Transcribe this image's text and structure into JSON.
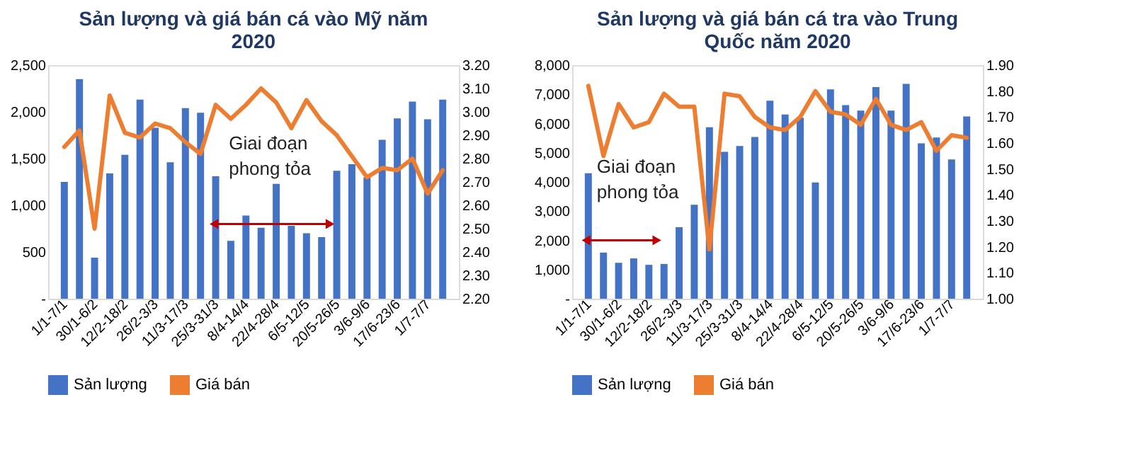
{
  "chart_data": [
    {
      "type": "bar",
      "title": "Sản lượng và giá bán cá vào Mỹ năm 2020",
      "categories": [
        "1/1-7/1",
        null,
        "30/1-6/2",
        null,
        "12/2-18/2",
        null,
        "26/2-3/3",
        null,
        "11/3-17/3",
        null,
        "25/3-31/3",
        null,
        "8/4-14/4",
        null,
        "22/4-28/4",
        null,
        "6/5-12/5",
        null,
        "20/5-26/5",
        null,
        "3/6-9/6",
        null,
        "17/6-23/6",
        null,
        "1/7-7/7",
        null
      ],
      "series": [
        {
          "name": "Sản lượng",
          "color": "#4472c4",
          "values": [
            1250,
            2350,
            440,
            1340,
            1540,
            2130,
            1830,
            1460,
            2040,
            1990,
            1310,
            620,
            890,
            760,
            1230,
            780,
            700,
            660,
            1370,
            1440,
            1300,
            1700,
            1930,
            2110,
            1920,
            2130
          ]
        },
        {
          "name": "Giá bán",
          "type": "line",
          "axis": "y2",
          "color": "#ed7d31",
          "values": [
            2.85,
            2.92,
            2.5,
            3.07,
            2.91,
            2.89,
            2.95,
            2.93,
            2.87,
            2.82,
            3.03,
            2.97,
            3.03,
            3.1,
            3.04,
            2.93,
            3.05,
            2.96,
            2.9,
            2.81,
            2.72,
            2.76,
            2.75,
            2.8,
            2.65,
            2.75
          ]
        }
      ],
      "ylim": [
        0,
        2500
      ],
      "yticks": [
        {
          "value": 0,
          "label": "-"
        },
        {
          "value": 500,
          "label": "500"
        },
        {
          "value": 1000,
          "label": "1,000"
        },
        {
          "value": 1500,
          "label": "1,500"
        },
        {
          "value": 2000,
          "label": "2,000"
        },
        {
          "value": 2500,
          "label": "2,500"
        }
      ],
      "y2lim": [
        2.2,
        3.2
      ],
      "y2ticks": [
        {
          "value": 2.2,
          "label": "2.20"
        },
        {
          "value": 2.3,
          "label": "2.30"
        },
        {
          "value": 2.4,
          "label": "2.40"
        },
        {
          "value": 2.5,
          "label": "2.50"
        },
        {
          "value": 2.6,
          "label": "2.60"
        },
        {
          "value": 2.7,
          "label": "2.70"
        },
        {
          "value": 2.8,
          "label": "2.80"
        },
        {
          "value": 2.9,
          "label": "2.90"
        },
        {
          "value": 3.0,
          "label": "3.00"
        },
        {
          "value": 3.1,
          "label": "3.10"
        },
        {
          "value": 3.2,
          "label": "3.20"
        }
      ],
      "annotations": [
        "Giai đoạn phong tỏa"
      ],
      "grid": false,
      "legend": "bottom"
    },
    {
      "type": "bar",
      "title": "Sản lượng và giá bán cá tra vào Trung Quốc năm 2020",
      "categories": [
        "1/1-7/1",
        null,
        "30/1-6/2",
        null,
        "12/2-18/2",
        null,
        "26/2-3/3",
        null,
        "11/3-17/3",
        null,
        "25/3-31/3",
        null,
        "8/4-14/4",
        null,
        "22/4-28/4",
        null,
        "6/5-12/5",
        null,
        "20/5-26/5",
        null,
        "3/6-9/6",
        null,
        "17/6-23/6",
        null,
        "1/7-7/7",
        null
      ],
      "series": [
        {
          "name": "Sản lượng",
          "color": "#4472c4",
          "values": [
            4300,
            1580,
            1230,
            1380,
            1160,
            1190,
            2450,
            3220,
            5870,
            5030,
            5230,
            5540,
            6780,
            6310,
            6200,
            3980,
            7170,
            6630,
            6440,
            7250,
            6440,
            7360,
            5320,
            5520,
            4770,
            6240
          ]
        },
        {
          "name": "Giá bán",
          "type": "line",
          "axis": "y2",
          "color": "#ed7d31",
          "values": [
            1.82,
            1.55,
            1.75,
            1.66,
            1.68,
            1.79,
            1.74,
            1.74,
            1.19,
            1.79,
            1.78,
            1.7,
            1.66,
            1.65,
            1.7,
            1.8,
            1.72,
            1.71,
            1.67,
            1.77,
            1.67,
            1.65,
            1.68,
            1.57,
            1.63,
            1.62
          ]
        }
      ],
      "ylim": [
        0,
        8000
      ],
      "yticks": [
        {
          "value": 0,
          "label": "-"
        },
        {
          "value": 1000,
          "label": "1,000"
        },
        {
          "value": 2000,
          "label": "2,000"
        },
        {
          "value": 3000,
          "label": "3,000"
        },
        {
          "value": 4000,
          "label": "4,000"
        },
        {
          "value": 5000,
          "label": "5,000"
        },
        {
          "value": 6000,
          "label": "6,000"
        },
        {
          "value": 7000,
          "label": "7,000"
        },
        {
          "value": 8000,
          "label": "8,000"
        }
      ],
      "y2lim": [
        1.0,
        1.9
      ],
      "y2ticks": [
        {
          "value": 1.0,
          "label": "1.00"
        },
        {
          "value": 1.1,
          "label": "1.10"
        },
        {
          "value": 1.2,
          "label": "1.20"
        },
        {
          "value": 1.3,
          "label": "1.30"
        },
        {
          "value": 1.4,
          "label": "1.40"
        },
        {
          "value": 1.5,
          "label": "1.50"
        },
        {
          "value": 1.6,
          "label": "1.60"
        },
        {
          "value": 1.7,
          "label": "1.70"
        },
        {
          "value": 1.8,
          "label": "1.80"
        },
        {
          "value": 1.9,
          "label": "1.90"
        }
      ],
      "annotations": [
        "Giai đoạn phong tỏa"
      ],
      "grid": false,
      "legend": "bottom"
    }
  ]
}
